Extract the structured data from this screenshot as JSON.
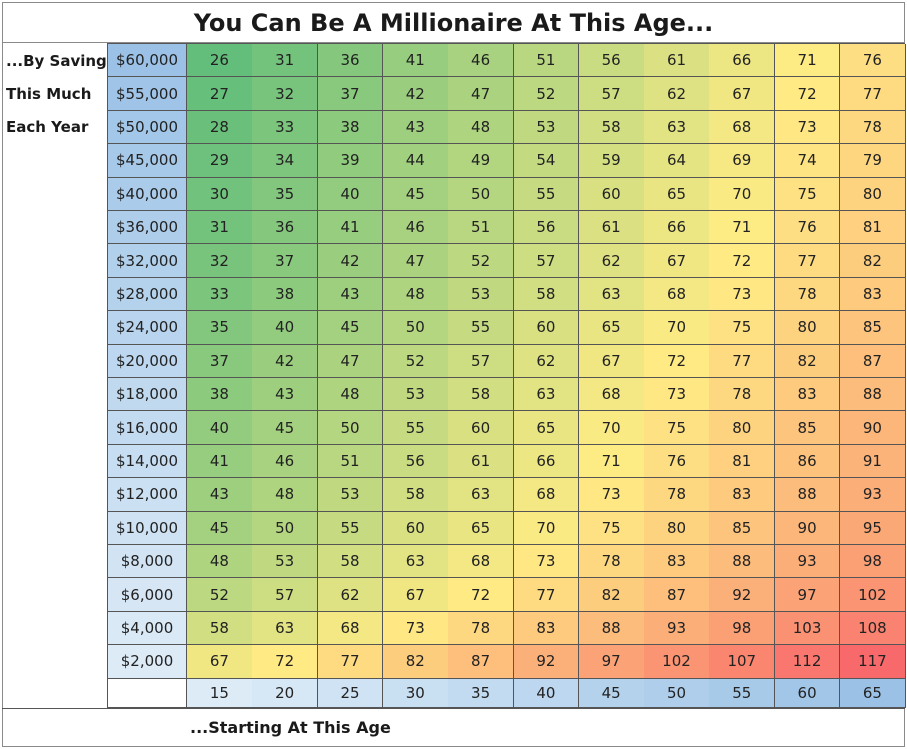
{
  "header": {
    "title": "You Can Be A Millionaire At This Age...",
    "side_label_lines": [
      "...By Saving",
      "This Much",
      "Each Year"
    ],
    "footer_label": "...Starting At This Age"
  },
  "chart_data": {
    "type": "heatmap",
    "title": "You Can Be A Millionaire At This Age...",
    "ylabel": "...By Saving This Much Each Year",
    "xlabel": "...Starting At This Age",
    "x": [
      15,
      20,
      25,
      30,
      35,
      40,
      45,
      50,
      55,
      60,
      65
    ],
    "y": [
      "$60,000",
      "$55,000",
      "$50,000",
      "$45,000",
      "$40,000",
      "$36,000",
      "$32,000",
      "$28,000",
      "$24,000",
      "$20,000",
      "$18,000",
      "$16,000",
      "$14,000",
      "$12,000",
      "$10,000",
      "$8,000",
      "$6,000",
      "$4,000",
      "$2,000"
    ],
    "values": [
      [
        26,
        31,
        36,
        41,
        46,
        51,
        56,
        61,
        66,
        71,
        76
      ],
      [
        27,
        32,
        37,
        42,
        47,
        52,
        57,
        62,
        67,
        72,
        77
      ],
      [
        28,
        33,
        38,
        43,
        48,
        53,
        58,
        63,
        68,
        73,
        78
      ],
      [
        29,
        34,
        39,
        44,
        49,
        54,
        59,
        64,
        69,
        74,
        79
      ],
      [
        30,
        35,
        40,
        45,
        50,
        55,
        60,
        65,
        70,
        75,
        80
      ],
      [
        31,
        36,
        41,
        46,
        51,
        56,
        61,
        66,
        71,
        76,
        81
      ],
      [
        32,
        37,
        42,
        47,
        52,
        57,
        62,
        67,
        72,
        77,
        82
      ],
      [
        33,
        38,
        43,
        48,
        53,
        58,
        63,
        68,
        73,
        78,
        83
      ],
      [
        35,
        40,
        45,
        50,
        55,
        60,
        65,
        70,
        75,
        80,
        85
      ],
      [
        37,
        42,
        47,
        52,
        57,
        62,
        67,
        72,
        77,
        82,
        87
      ],
      [
        38,
        43,
        48,
        53,
        58,
        63,
        68,
        73,
        78,
        83,
        88
      ],
      [
        40,
        45,
        50,
        55,
        60,
        65,
        70,
        75,
        80,
        85,
        90
      ],
      [
        41,
        46,
        51,
        56,
        61,
        66,
        71,
        76,
        81,
        86,
        91
      ],
      [
        43,
        48,
        53,
        58,
        63,
        68,
        73,
        78,
        83,
        88,
        93
      ],
      [
        45,
        50,
        55,
        60,
        65,
        70,
        75,
        80,
        85,
        90,
        95
      ],
      [
        48,
        53,
        58,
        63,
        68,
        73,
        78,
        83,
        88,
        93,
        98
      ],
      [
        52,
        57,
        62,
        67,
        72,
        77,
        82,
        87,
        92,
        97,
        102
      ],
      [
        58,
        63,
        68,
        73,
        78,
        83,
        88,
        93,
        98,
        103,
        108
      ],
      [
        67,
        72,
        77,
        82,
        87,
        92,
        97,
        102,
        107,
        112,
        117
      ]
    ],
    "color_scale": {
      "low": "#63be7b",
      "mid": "#ffeb84",
      "high": "#f8696b",
      "min_value": 26,
      "max_value": 117
    },
    "axis_highlight_colors": {
      "light": "#ddebf7",
      "dark": "#9bc2e6"
    }
  }
}
